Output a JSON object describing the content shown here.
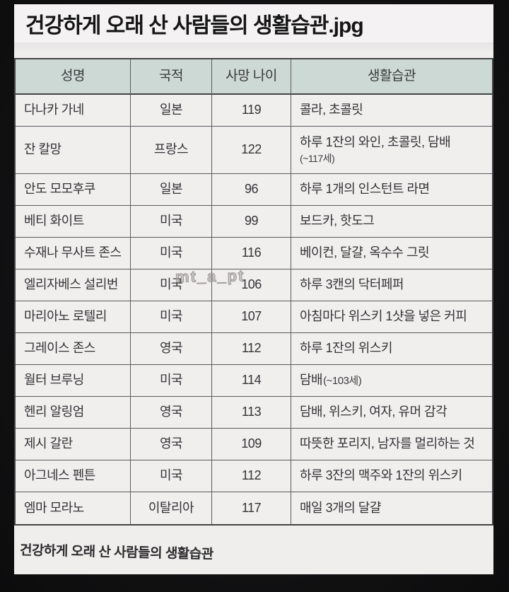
{
  "title": "건강하게 오래 산 사람들의 생활습관.jpg",
  "table": {
    "headers": {
      "name": "성명",
      "nationality": "국적",
      "age": "사망 나이",
      "habit": "생활습관"
    },
    "rows": [
      {
        "name": "다나카 가네",
        "nationality": "일본",
        "age": "119",
        "habit": "콜라, 초콜릿",
        "note": "",
        "note_layout": ""
      },
      {
        "name": "잔 칼망",
        "nationality": "프랑스",
        "age": "122",
        "habit": "하루 1잔의 와인, 초콜릿, 담배",
        "note": "(~117세)",
        "note_layout": "newline"
      },
      {
        "name": "안도 모모후쿠",
        "nationality": "일본",
        "age": "96",
        "habit": "하루 1개의 인스턴트 라면",
        "note": "",
        "note_layout": ""
      },
      {
        "name": "베티 화이트",
        "nationality": "미국",
        "age": "99",
        "habit": "보드카, 핫도그",
        "note": "",
        "note_layout": ""
      },
      {
        "name": "수재나 무사트 존스",
        "nationality": "미국",
        "age": "116",
        "habit": "베이컨, 달걀, 옥수수 그릿",
        "note": "",
        "note_layout": ""
      },
      {
        "name": "엘리자베스 설리번",
        "nationality": "미국",
        "age": "106",
        "habit": "하루 3캔의 닥터페퍼",
        "note": "",
        "note_layout": ""
      },
      {
        "name": "마리아노 로텔리",
        "nationality": "미국",
        "age": "107",
        "habit": "아침마다 위스키 1샷을 넣은 커피",
        "note": "",
        "note_layout": ""
      },
      {
        "name": "그레이스 존스",
        "nationality": "영국",
        "age": "112",
        "habit": "하루 1잔의 위스키",
        "note": "",
        "note_layout": ""
      },
      {
        "name": "월터 브루닝",
        "nationality": "미국",
        "age": "114",
        "habit": "담배",
        "note": "(~103세)",
        "note_layout": "inline"
      },
      {
        "name": "헨리 알링엄",
        "nationality": "영국",
        "age": "113",
        "habit": "담배, 위스키, 여자, 유머 감각",
        "note": "",
        "note_layout": ""
      },
      {
        "name": "제시 갈란",
        "nationality": "영국",
        "age": "109",
        "habit": "따뜻한 포리지, 남자를 멀리하는 것",
        "note": "",
        "note_layout": ""
      },
      {
        "name": "아그네스 펜튼",
        "nationality": "미국",
        "age": "112",
        "habit": "하루 3잔의 맥주와 1잔의 위스키",
        "note": "",
        "note_layout": ""
      },
      {
        "name": "엠마 모라노",
        "nationality": "이탈리아",
        "age": "117",
        "habit": "매일 3개의 달걀",
        "note": "",
        "note_layout": ""
      }
    ]
  },
  "caption": "건강하게 오래 산 사람들의 생활습관",
  "watermark": "mt_a_pt",
  "colors": {
    "background": "#131314",
    "paper": "#f0eeed",
    "header_bg": "#cdd9d4",
    "border": "#5a5a5d",
    "text": "#333336"
  }
}
